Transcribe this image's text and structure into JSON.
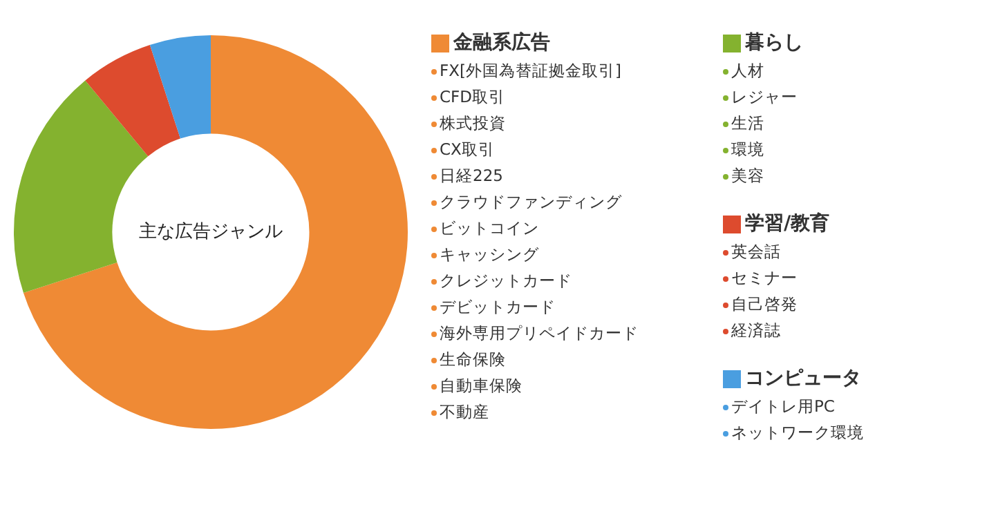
{
  "chart_data": {
    "type": "donut",
    "title": "主な広告ジャンル",
    "categories": [
      "金融系広告",
      "暮らし",
      "学習/教育",
      "コンピュータ"
    ],
    "values": [
      70,
      19,
      6,
      5
    ],
    "colors": [
      "#ef8a35",
      "#84b22f",
      "#dd4b2e",
      "#4a9ee0"
    ],
    "legend": "right",
    "annotations": [
      {
        "text": "FX[外国為替証拠金取引]",
        "x": "金融系広告"
      },
      {
        "text": "CFD取引",
        "x": "金融系広告"
      },
      {
        "text": "株式投資",
        "x": "金融系広告"
      },
      {
        "text": "CX取引",
        "x": "金融系広告"
      },
      {
        "text": "日経225",
        "x": "金融系広告"
      },
      {
        "text": "クラウドファンディング",
        "x": "金融系広告"
      },
      {
        "text": "ビットコイン",
        "x": "金融系広告"
      },
      {
        "text": "キャッシング",
        "x": "金融系広告"
      },
      {
        "text": "クレジットカード",
        "x": "金融系広告"
      },
      {
        "text": "デビットカード",
        "x": "金融系広告"
      },
      {
        "text": "海外専用プリペイドカード",
        "x": "金融系広告"
      },
      {
        "text": "生命保険",
        "x": "金融系広告"
      },
      {
        "text": "自動車保険",
        "x": "金融系広告"
      },
      {
        "text": "不動産",
        "x": "金融系広告"
      },
      {
        "text": "人材",
        "x": "暮らし"
      },
      {
        "text": "レジャー",
        "x": "暮らし"
      },
      {
        "text": "生活",
        "x": "暮らし"
      },
      {
        "text": "環境",
        "x": "暮らし"
      },
      {
        "text": "美容",
        "x": "暮らし"
      },
      {
        "text": "英会話",
        "x": "学習/教育"
      },
      {
        "text": "セミナー",
        "x": "学習/教育"
      },
      {
        "text": "自己啓発",
        "x": "学習/教育"
      },
      {
        "text": "経済誌",
        "x": "学習/教育"
      },
      {
        "text": "デイトレ用PC",
        "x": "コンピュータ"
      },
      {
        "text": "ネットワーク環境",
        "x": "コンピュータ"
      }
    ]
  }
}
